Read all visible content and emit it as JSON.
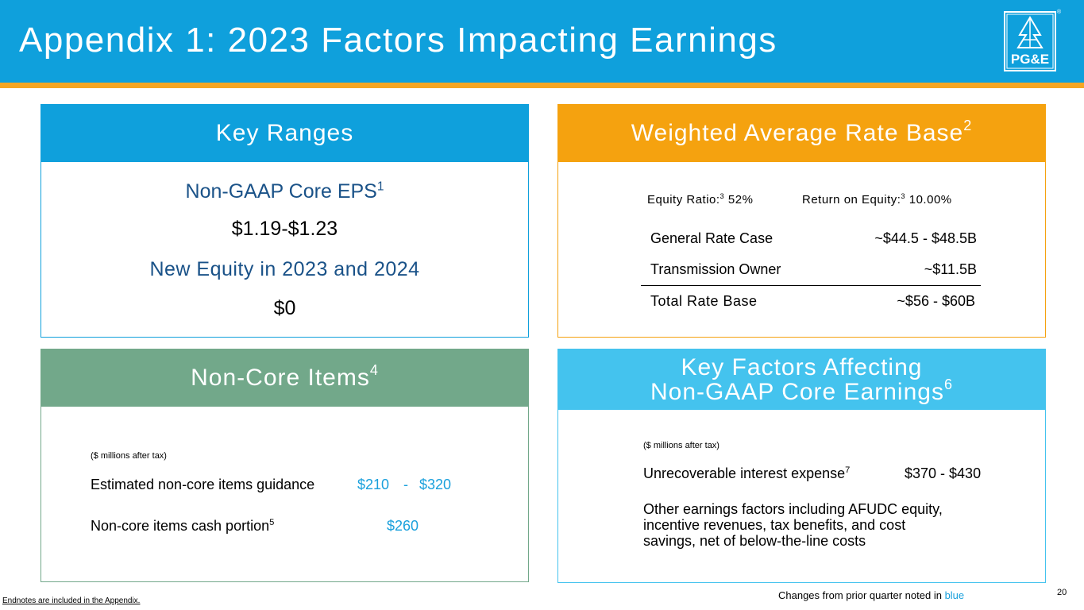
{
  "header": {
    "title": "Appendix 1: 2023 Factors Impacting Earnings",
    "logo_text": "PG&E",
    "logo_reg": "®"
  },
  "key_ranges": {
    "title": "Key Ranges",
    "eps_label": "Non-GAAP Core EPS",
    "eps_note": "1",
    "eps_value": "$1.19-$1.23",
    "equity_label": "New Equity in 2023 and 2024",
    "equity_value": "$0"
  },
  "rate_base": {
    "title": "Weighted Average Rate Base",
    "title_note": "2",
    "equity_ratio_label": "Equity Ratio:",
    "equity_ratio_note": "3",
    "equity_ratio_value": "52%",
    "roe_label": "Return on Equity:",
    "roe_note": "3",
    "roe_value": "10.00%",
    "rows": [
      {
        "label": "General Rate Case",
        "value": "~$44.5 - $48.5B"
      },
      {
        "label": "Transmission Owner",
        "value": "~$11.5B"
      }
    ],
    "total": {
      "label": "Total Rate Base",
      "value": "~$56 - $60B"
    }
  },
  "non_core": {
    "title": "Non-Core Items",
    "title_note": "4",
    "units": "($ millions after tax)",
    "guidance_label": "Estimated non-core items guidance",
    "guidance_low": "$210",
    "guidance_dash": "-",
    "guidance_high": "$320",
    "cash_label": "Non-core items cash portion",
    "cash_note": "5",
    "cash_value": "$260"
  },
  "key_factors": {
    "title_line1": "Key Factors Affecting",
    "title_line2": "Non-GAAP Core Earnings",
    "title_note": "6",
    "units": "($ millions after tax)",
    "interest_label": "Unrecoverable interest expense",
    "interest_note": "7",
    "interest_value": "$370 - $430",
    "other_line1": "Other earnings factors including AFUDC equity,",
    "other_line2": "incentive revenues, tax benefits, and cost",
    "other_line3": "savings, net of below-the-line costs"
  },
  "footer": {
    "endnotes": "Endnotes are included in the Appendix.",
    "changes_prefix": "Changes from prior quarter noted in ",
    "changes_blue": "blue",
    "page_number": "20"
  },
  "colors": {
    "header_blue": "#0fa0dc",
    "stripe_orange": "#f5a623",
    "rate_base_orange": "#f5a20f",
    "non_core_green": "#72a88a",
    "key_factors_blue": "#44c3ee",
    "navy_text": "#1a5288",
    "highlight_blue": "#1aa0dc"
  }
}
